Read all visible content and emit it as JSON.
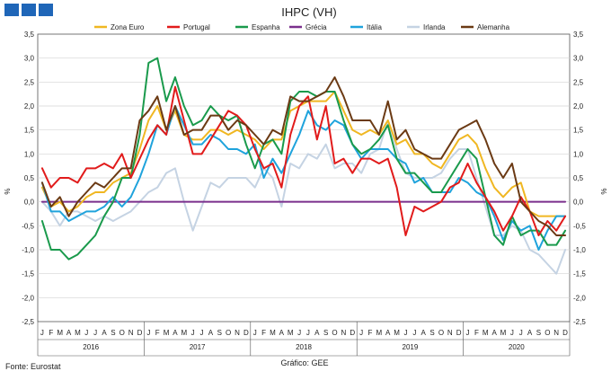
{
  "chart_data": {
    "type": "line",
    "title": "IHPC (VH)",
    "ylabel": "%",
    "ylim": [
      -2.5,
      3.5
    ],
    "yticks": [
      "3,5",
      "3,0",
      "2,5",
      "2,0",
      "1,5",
      "1,0",
      "0,5",
      "0,0",
      "-0,5",
      "-1,0",
      "-1,5",
      "-2,0",
      "-2,5"
    ],
    "month_labels": [
      "J",
      "F",
      "M",
      "A",
      "M",
      "J",
      "J",
      "A",
      "S",
      "O",
      "N",
      "D"
    ],
    "years": [
      "2016",
      "2017",
      "2018",
      "2019",
      "2020"
    ],
    "footnote_left": "Fonte: Eurostat",
    "footnote_center": "Gráfico: GEE",
    "series": [
      {
        "name": "Zona Euro",
        "color": "#f0b722",
        "values": [
          0.3,
          -0.1,
          0.0,
          -0.2,
          -0.1,
          0.1,
          0.2,
          0.2,
          0.4,
          0.5,
          0.6,
          1.1,
          1.7,
          2.0,
          1.5,
          1.9,
          1.4,
          1.3,
          1.3,
          1.5,
          1.5,
          1.4,
          1.5,
          1.4,
          1.3,
          1.1,
          1.3,
          1.3,
          1.9,
          2.0,
          2.1,
          2.1,
          2.1,
          2.3,
          1.9,
          1.5,
          1.4,
          1.5,
          1.4,
          1.7,
          1.2,
          1.3,
          1.0,
          1.0,
          0.8,
          0.7,
          1.0,
          1.3,
          1.4,
          1.2,
          0.7,
          0.3,
          0.1,
          0.3,
          0.4,
          -0.2,
          -0.3,
          -0.3,
          -0.3,
          -0.3
        ]
      },
      {
        "name": "Portugal",
        "color": "#e11b1b",
        "values": [
          0.7,
          0.3,
          0.5,
          0.5,
          0.4,
          0.7,
          0.7,
          0.8,
          0.7,
          1.0,
          0.5,
          0.9,
          1.3,
          1.6,
          1.4,
          2.4,
          1.7,
          1.0,
          1.0,
          1.3,
          1.6,
          1.9,
          1.8,
          1.6,
          1.1,
          0.7,
          0.8,
          0.3,
          1.4,
          2.0,
          2.2,
          1.3,
          2.0,
          0.8,
          0.9,
          0.6,
          0.9,
          0.9,
          0.8,
          0.9,
          0.3,
          -0.7,
          -0.1,
          -0.2,
          -0.1,
          0.0,
          0.3,
          0.4,
          0.8,
          0.4,
          0.1,
          -0.2,
          -0.6,
          -0.3,
          0.1,
          -0.2,
          -0.7,
          -0.4,
          -0.6,
          -0.3
        ]
      },
      {
        "name": "Espanha",
        "color": "#1a9a4c",
        "values": [
          -0.4,
          -1.0,
          -1.0,
          -1.2,
          -1.1,
          -0.9,
          -0.7,
          -0.3,
          0.0,
          0.5,
          0.5,
          1.4,
          2.9,
          3.0,
          2.1,
          2.6,
          2.0,
          1.6,
          1.7,
          2.0,
          1.8,
          1.7,
          1.8,
          1.2,
          0.7,
          1.2,
          1.3,
          1.0,
          2.1,
          2.3,
          2.3,
          2.2,
          2.3,
          2.3,
          1.7,
          1.2,
          1.0,
          1.1,
          1.3,
          1.6,
          0.9,
          0.6,
          0.6,
          0.4,
          0.2,
          0.2,
          0.5,
          0.8,
          1.1,
          0.9,
          0.1,
          -0.7,
          -0.9,
          -0.3,
          -0.7,
          -0.6,
          -0.6,
          -0.9,
          -0.9,
          -0.6
        ]
      },
      {
        "name": "Grécia",
        "color": "#7a2f8c",
        "values": [
          0.0,
          0.0,
          0.0,
          0.0,
          0.0,
          0.0,
          0.0,
          0.0,
          0.0,
          0.0,
          0.0,
          0.0,
          0.0,
          0.0,
          0.0,
          0.0,
          0.0,
          0.0,
          0.0,
          0.0,
          0.0,
          0.0,
          0.0,
          0.0,
          0.0,
          0.0,
          0.0,
          0.0,
          0.0,
          0.0,
          0.0,
          0.0,
          0.0,
          0.0,
          0.0,
          0.0,
          0.0,
          0.0,
          0.0,
          0.0,
          0.0,
          0.0,
          0.0,
          0.0,
          0.0,
          0.0,
          0.0,
          0.0,
          0.0,
          0.0,
          0.0,
          0.0,
          0.0,
          0.0,
          0.0,
          0.0,
          0.0,
          0.0,
          0.0,
          0.0
        ]
      },
      {
        "name": "Itália",
        "color": "#1fa3dc",
        "values": [
          0.4,
          -0.2,
          -0.2,
          -0.4,
          -0.3,
          -0.2,
          -0.2,
          -0.1,
          0.1,
          -0.1,
          0.1,
          0.5,
          1.0,
          1.6,
          1.4,
          2.0,
          1.6,
          1.2,
          1.2,
          1.4,
          1.3,
          1.1,
          1.1,
          1.0,
          1.2,
          0.5,
          0.9,
          0.6,
          1.0,
          1.4,
          1.9,
          1.6,
          1.5,
          1.7,
          1.6,
          1.2,
          0.9,
          1.1,
          1.1,
          1.1,
          0.9,
          0.8,
          0.4,
          0.5,
          0.2,
          0.2,
          0.2,
          0.5,
          0.4,
          0.2,
          0.1,
          -0.3,
          -0.8,
          -0.4,
          -0.6,
          -0.5,
          -1.0,
          -0.6,
          -0.3,
          -0.3
        ]
      },
      {
        "name": "Irlanda",
        "color": "#c5d3e3",
        "values": [
          0.0,
          -0.2,
          -0.5,
          -0.2,
          -0.2,
          -0.3,
          -0.4,
          -0.3,
          -0.4,
          -0.3,
          -0.2,
          0.0,
          0.2,
          0.3,
          0.6,
          0.7,
          0.0,
          -0.6,
          -0.1,
          0.4,
          0.3,
          0.5,
          0.5,
          0.5,
          0.3,
          0.7,
          0.5,
          -0.1,
          0.8,
          0.7,
          1.0,
          0.9,
          1.2,
          0.7,
          0.8,
          0.8,
          0.6,
          1.0,
          1.1,
          1.7,
          1.1,
          0.6,
          0.5,
          0.5,
          0.5,
          0.6,
          0.9,
          1.1,
          1.1,
          0.5,
          -0.1,
          -0.7,
          -0.7,
          -0.5,
          -0.6,
          -1.0,
          -1.1,
          -1.3,
          -1.5,
          -1.0
        ]
      },
      {
        "name": "Alemanha",
        "color": "#6b3a14",
        "values": [
          0.4,
          -0.1,
          0.1,
          -0.3,
          0.0,
          0.2,
          0.4,
          0.3,
          0.5,
          0.7,
          0.7,
          1.7,
          1.9,
          2.2,
          1.5,
          2.0,
          1.4,
          1.5,
          1.5,
          1.8,
          1.8,
          1.5,
          1.7,
          1.6,
          1.4,
          1.2,
          1.5,
          1.4,
          2.2,
          2.1,
          2.1,
          2.2,
          2.3,
          2.6,
          2.2,
          1.7,
          1.7,
          1.7,
          1.4,
          2.1,
          1.3,
          1.5,
          1.1,
          1.0,
          0.9,
          0.9,
          1.2,
          1.5,
          1.6,
          1.7,
          1.3,
          0.8,
          0.5,
          0.8,
          0.0,
          -0.2,
          -0.4,
          -0.5,
          -0.7,
          -0.7
        ]
      }
    ]
  }
}
